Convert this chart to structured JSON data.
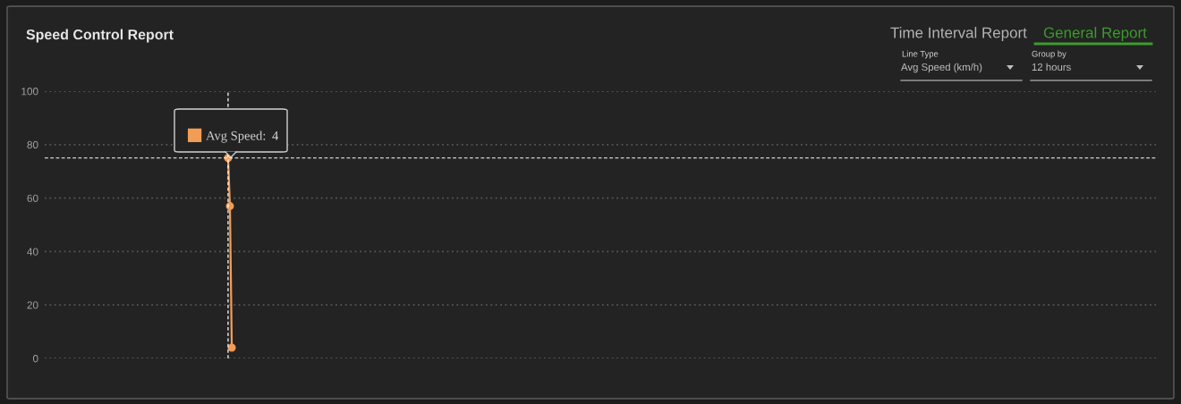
{
  "chart_data": {
    "type": "line",
    "title": "Speed Control Report",
    "categories": [
      null,
      null,
      null,
      null,
      null,
      null,
      null,
      null,
      null,
      null,
      null,
      null,
      null,
      null,
      null,
      null,
      null,
      null,
      null,
      null,
      null,
      null,
      null,
      null,
      null,
      null,
      null,
      null,
      null,
      null,
      null,
      null,
      null,
      null,
      null,
      null,
      null,
      null,
      null,
      null,
      null,
      null,
      null,
      null,
      null,
      null,
      null,
      null,
      null,
      null,
      null,
      null,
      null,
      null,
      null,
      null,
      null,
      null,
      null,
      null,
      null,
      null,
      null,
      null,
      null,
      null,
      null,
      null,
      null,
      null,
      null,
      null,
      null,
      null,
      null,
      null,
      null,
      null,
      null,
      null,
      null,
      null,
      null,
      null,
      null,
      null,
      null,
      null,
      null,
      null,
      null,
      null,
      null,
      null,
      null,
      null,
      null,
      null,
      null,
      null,
      null,
      null,
      null,
      null,
      null,
      null,
      null,
      null,
      null,
      null,
      null,
      null,
      null,
      null,
      null,
      null,
      null,
      null,
      null,
      null,
      null,
      null,
      null,
      null,
      null,
      null,
      null,
      null,
      null,
      null,
      null,
      null,
      null,
      null,
      null,
      null,
      null,
      null,
      null,
      null,
      null,
      null,
      null,
      null,
      null,
      null,
      null,
      null,
      null,
      null,
      null,
      null,
      null,
      null,
      null,
      null,
      null,
      null,
      null,
      null,
      null,
      null,
      null,
      null,
      null,
      null,
      null,
      null,
      null,
      null,
      null,
      null,
      null,
      null,
      null,
      null,
      null,
      null,
      null,
      null,
      null,
      null,
      null,
      null,
      null,
      null,
      null,
      null,
      null,
      null,
      null,
      null,
      null,
      null,
      null,
      null,
      null,
      null,
      null,
      null,
      null,
      null,
      null,
      null,
      null,
      null,
      null,
      null,
      null,
      null,
      null,
      null,
      null,
      null,
      null,
      null,
      null,
      null,
      null,
      null,
      null,
      null,
      null,
      null,
      null,
      null,
      null,
      null,
      null,
      null,
      null,
      null,
      null,
      null,
      null,
      null,
      null,
      null,
      null,
      null,
      null,
      null,
      null,
      null,
      null,
      null,
      null,
      null,
      null,
      null,
      null,
      null,
      null,
      null,
      null,
      null,
      null,
      null,
      null,
      null,
      null,
      null,
      null,
      null,
      null,
      null,
      null,
      null,
      null,
      null,
      null,
      null,
      null,
      null,
      null,
      null,
      null,
      null,
      null,
      null,
      null,
      null,
      null,
      null,
      null,
      null,
      null,
      null,
      null,
      null,
      null,
      null,
      null,
      null,
      null,
      null,
      null,
      null,
      null,
      null,
      null,
      null,
      null,
      null,
      null,
      null,
      null,
      null,
      null,
      null,
      null,
      null,
      null,
      null,
      null,
      null,
      null,
      null,
      null,
      null,
      null,
      null,
      null,
      null,
      null,
      null,
      null,
      null,
      null,
      null,
      null,
      null,
      null,
      null,
      null,
      null,
      null,
      null,
      null,
      null,
      null,
      null,
      null,
      null,
      null,
      null,
      null,
      null,
      null,
      null,
      null,
      null,
      null,
      null,
      null,
      null,
      null,
      null,
      null,
      null,
      null,
      null,
      null,
      null,
      null,
      null,
      null,
      null,
      null,
      null,
      null,
      null,
      null,
      null,
      null,
      null,
      null,
      null,
      null,
      null,
      null,
      null,
      null,
      null,
      null,
      null,
      null,
      null,
      null,
      null,
      null,
      null,
      null,
      null,
      null,
      null,
      null,
      null,
      null,
      null,
      null,
      null,
      null,
      null,
      null,
      null,
      null,
      null,
      null,
      null,
      null,
      null,
      null,
      null,
      null,
      null,
      null,
      null,
      null,
      null,
      null,
      null,
      null,
      null,
      null,
      null,
      null,
      null,
      null,
      null,
      null,
      null,
      null,
      null,
      null,
      null,
      null,
      null,
      null,
      null,
      null,
      null,
      null,
      null,
      null,
      null,
      null,
      null,
      null,
      null,
      null,
      null,
      null,
      null,
      null,
      null,
      null,
      null,
      null,
      null,
      null,
      null,
      null,
      null,
      null,
      null,
      null,
      null,
      null,
      null,
      null,
      null,
      null,
      null,
      null,
      null,
      null,
      null,
      null,
      null,
      null,
      null,
      null,
      null,
      null,
      null,
      null,
      null,
      null,
      null,
      null,
      null,
      null,
      null,
      null,
      null,
      null,
      null,
      null,
      null,
      null,
      null,
      null,
      null,
      null,
      null,
      null,
      null,
      null,
      null,
      null,
      null,
      null,
      null,
      null,
      null,
      null,
      null,
      null,
      null,
      null,
      null,
      null,
      null,
      null,
      null,
      null,
      null,
      null,
      null,
      null,
      null,
      null,
      null,
      null,
      null,
      null,
      null,
      null,
      null,
      null,
      null,
      null,
      null,
      null,
      null,
      null,
      null,
      null,
      null,
      null,
      null,
      null,
      null,
      null,
      null,
      null,
      null,
      null,
      null,
      null,
      null,
      null,
      null,
      null,
      null,
      null,
      null,
      null,
      null,
      null,
      null,
      null,
      null,
      null,
      null,
      null,
      null,
      null,
      null,
      null,
      null,
      null,
      null,
      null,
      null,
      null,
      null,
      null,
      null,
      null,
      null,
      null,
      null,
      null,
      null,
      null,
      null,
      null,
      null,
      null
    ],
    "ylim": [
      0,
      100
    ],
    "yticks": [
      0,
      20,
      40,
      60,
      80,
      100
    ],
    "series": [
      {
        "name": "Avg Speed:",
        "color": "#f39c56",
        "values": [
          null,
          null,
          null,
          null,
          null,
          null,
          null,
          null,
          null,
          null,
          null,
          null,
          null,
          null,
          null,
          null,
          null,
          null,
          null,
          null,
          null,
          null,
          null,
          null,
          null,
          null,
          null,
          null,
          null,
          null,
          null,
          null,
          null,
          null,
          null,
          null,
          null,
          null,
          null,
          null,
          null,
          null,
          null,
          null,
          null,
          null,
          null,
          null,
          null,
          null,
          null,
          null,
          null,
          null,
          null,
          null,
          null,
          null,
          null,
          null,
          null,
          null,
          null,
          null,
          null,
          null,
          null,
          null,
          null,
          null,
          null,
          null,
          null,
          null,
          null,
          null,
          null,
          null,
          null,
          null,
          null,
          null,
          null,
          null,
          null,
          null,
          null,
          null,
          null,
          null,
          null,
          null,
          null,
          null,
          null,
          null,
          null,
          null,
          null,
          75,
          57,
          4,
          null,
          null,
          null,
          null,
          null,
          null,
          null,
          null,
          null,
          null,
          null,
          null,
          null,
          null,
          null,
          null,
          null,
          null,
          null,
          null,
          null,
          null,
          null,
          null,
          null,
          null,
          null,
          null,
          null,
          null,
          null,
          null,
          null,
          null,
          null,
          null,
          null,
          null,
          null,
          null,
          null,
          null,
          null,
          null,
          null,
          null,
          null,
          null,
          null,
          null,
          null,
          null,
          null,
          null,
          null,
          null,
          null,
          null,
          null,
          null,
          null,
          null,
          null,
          null,
          null,
          null,
          null,
          null,
          null,
          null,
          null,
          null,
          null,
          null,
          null,
          null,
          null,
          null,
          null,
          null,
          null,
          null,
          null,
          null,
          null,
          null,
          null,
          null,
          null,
          null,
          null,
          null,
          null,
          null,
          null,
          null,
          null,
          null,
          null,
          null,
          null,
          null,
          null,
          null,
          null,
          null,
          null,
          null,
          null,
          null,
          null,
          null,
          null,
          null,
          null,
          null,
          null,
          null,
          null,
          null,
          null,
          null,
          null,
          null,
          null,
          null,
          null,
          null,
          null,
          null,
          null,
          null,
          null,
          null,
          null,
          null,
          null,
          null,
          null,
          null,
          null,
          null,
          null,
          null,
          null,
          null,
          null,
          null,
          null,
          null,
          null,
          null,
          null,
          null,
          null,
          null,
          null,
          null,
          null,
          null,
          null,
          null,
          null,
          null,
          null,
          null,
          null,
          null,
          null,
          null,
          null,
          null,
          null,
          null,
          null,
          null,
          null,
          null,
          null,
          null,
          null,
          null,
          null,
          null,
          null,
          null,
          null,
          null,
          null,
          null,
          null,
          null,
          null,
          null,
          null,
          null,
          null,
          null,
          null,
          null,
          null,
          null,
          null,
          null,
          null,
          null,
          null,
          null,
          null,
          null,
          null,
          null,
          null,
          null,
          null,
          null,
          null,
          null,
          null,
          null,
          null,
          null,
          null,
          null,
          null,
          null,
          null,
          null,
          null,
          null,
          null,
          null,
          null,
          null,
          null,
          null,
          null,
          null,
          null,
          null,
          null,
          null,
          null,
          null,
          null,
          null,
          null,
          null,
          null,
          null,
          null,
          null,
          null,
          null,
          null,
          null,
          null,
          null,
          null,
          null,
          null,
          null,
          null,
          null,
          null,
          null,
          null,
          null,
          null,
          null,
          null,
          null,
          null,
          null,
          null,
          null,
          null,
          null,
          null,
          null,
          null,
          null,
          null,
          null,
          null,
          null,
          null,
          null,
          null,
          null,
          null,
          null,
          null,
          null,
          null,
          null,
          null,
          null,
          null,
          null,
          null,
          null,
          null,
          null,
          null,
          null,
          null,
          null,
          null,
          null,
          null,
          null,
          null,
          null,
          null,
          null,
          null,
          null,
          null,
          null,
          null,
          null,
          null,
          null,
          null,
          null,
          null,
          null,
          null,
          null,
          null,
          null,
          null,
          null,
          null,
          null,
          null,
          null,
          null,
          null,
          null,
          null,
          null,
          null,
          null,
          null,
          null,
          null,
          null,
          null,
          null,
          null,
          null,
          null,
          null,
          null,
          null,
          null,
          null,
          null,
          null,
          null,
          null,
          null,
          null,
          null,
          null,
          null,
          null,
          null,
          null,
          null,
          null,
          null,
          null,
          null,
          null,
          null,
          null,
          null,
          null,
          null,
          null,
          null,
          null,
          null,
          null,
          null,
          null,
          null,
          null,
          null,
          null,
          null,
          null,
          null,
          null,
          null,
          null,
          null,
          null,
          null,
          null,
          null,
          null,
          null,
          null,
          null,
          null,
          null,
          null,
          null,
          null,
          null,
          null,
          null,
          null,
          null,
          null,
          null,
          null,
          null,
          null,
          null,
          null,
          null,
          null,
          null,
          null,
          null,
          null,
          null,
          null,
          null,
          null,
          null,
          null,
          null,
          null,
          null,
          null,
          null,
          null,
          null,
          null,
          null,
          null,
          null,
          null,
          null,
          null,
          null,
          null,
          null,
          null,
          null,
          null,
          null,
          null,
          null,
          null,
          null,
          null,
          null,
          null,
          null,
          null,
          null,
          null,
          null,
          null,
          null,
          null,
          null,
          null,
          null,
          null,
          null,
          null,
          null,
          null,
          null,
          null,
          null,
          null,
          null,
          null,
          null,
          null,
          null,
          null,
          null,
          null,
          null,
          null,
          null,
          null,
          null,
          null
        ]
      }
    ],
    "marker": "circle",
    "line_style": "solid",
    "grid": "y",
    "legend": "top left",
    "tick_labels": "y",
    "ref_lines": [
      {
        "axis": "y",
        "value": 75,
        "color": "#ffffff",
        "line_style": "dashed"
      }
    ],
    "annotations": [
      "Time Interval Report",
      "General Report",
      "Line Type",
      "Avg Speed (km/h)",
      "Group by",
      "12 hours",
      "4"
    ]
  }
}
